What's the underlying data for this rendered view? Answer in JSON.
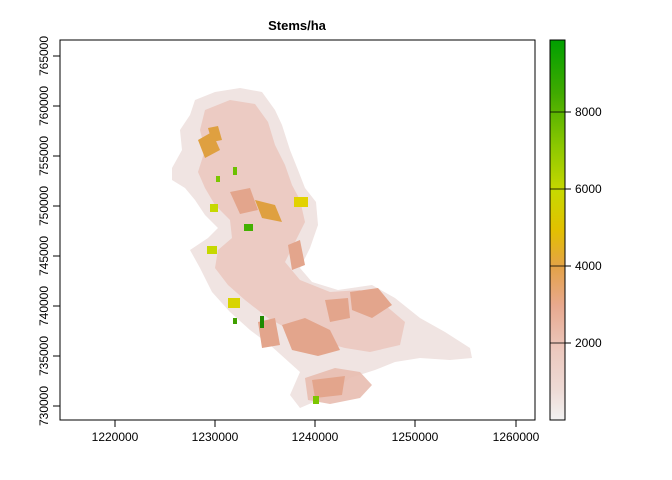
{
  "map": {
    "title": "Stems/ha",
    "x_axis": {
      "label": "",
      "ticks": [
        "1220000",
        "1230000",
        "1240000",
        "1250000",
        "1260000"
      ]
    },
    "y_axis": {
      "label": "",
      "ticks": [
        "730000",
        "735000",
        "740000",
        "745000",
        "750000",
        "755000",
        "760000",
        "765000"
      ]
    },
    "legend": {
      "ticks": [
        "2000",
        "4000",
        "6000",
        "8000"
      ],
      "range": [
        0,
        9800
      ],
      "colors": [
        "#f2f2f2",
        "#eccbc3",
        "#e6a88f",
        "#e4a13f",
        "#e4d300",
        "#b8de00",
        "#7cc600",
        "#20a000",
        "#00a600"
      ]
    }
  }
}
